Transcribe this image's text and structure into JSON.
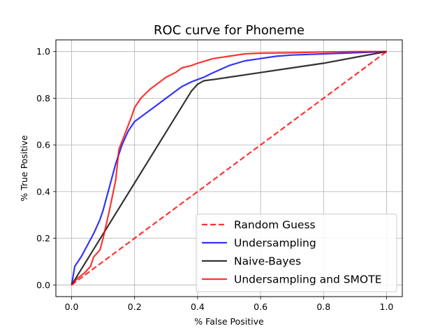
{
  "chart_data": {
    "type": "line",
    "title": "ROC curve for Phoneme",
    "xlabel": "% False Positive",
    "ylabel": "% True Positive",
    "xlim": [
      -0.05,
      1.05
    ],
    "ylim": [
      -0.05,
      1.05
    ],
    "xticks": [
      "0.0",
      "0.2",
      "0.4",
      "0.6",
      "0.8",
      "1.0"
    ],
    "yticks": [
      "0.0",
      "0.2",
      "0.4",
      "0.6",
      "0.8",
      "1.0"
    ],
    "grid": true,
    "legend_position": "lower-right",
    "series": [
      {
        "name": "Random Guess",
        "style": "dashed",
        "color": "#ff0000",
        "x": [
          0,
          1
        ],
        "y": [
          0,
          1
        ]
      },
      {
        "name": "Undersampling",
        "style": "solid",
        "color": "#0000ff",
        "x": [
          0,
          0.01,
          0.03,
          0.05,
          0.07,
          0.09,
          0.1,
          0.12,
          0.14,
          0.16,
          0.18,
          0.2,
          0.22,
          0.25,
          0.28,
          0.3,
          0.33,
          0.35,
          0.38,
          0.4,
          0.42,
          0.45,
          0.5,
          0.55,
          0.6,
          0.65,
          0.7,
          0.8,
          0.9,
          1.0
        ],
        "y": [
          0,
          0.08,
          0.12,
          0.17,
          0.22,
          0.28,
          0.32,
          0.42,
          0.52,
          0.6,
          0.66,
          0.7,
          0.72,
          0.75,
          0.78,
          0.8,
          0.83,
          0.85,
          0.87,
          0.88,
          0.89,
          0.91,
          0.94,
          0.96,
          0.97,
          0.98,
          0.985,
          0.99,
          0.995,
          1.0
        ]
      },
      {
        "name": "Naive-Bayes",
        "style": "solid",
        "color": "#000000",
        "x": [
          0,
          0.38,
          0.4,
          0.42,
          0.45,
          0.5,
          0.6,
          0.7,
          0.8,
          0.9,
          1.0
        ],
        "y": [
          0,
          0.83,
          0.86,
          0.875,
          0.88,
          0.89,
          0.91,
          0.93,
          0.95,
          0.975,
          1.0
        ]
      },
      {
        "name": "Undersampling and SMOTE",
        "style": "solid",
        "color": "#ff0000",
        "x": [
          0,
          0.02,
          0.04,
          0.06,
          0.07,
          0.09,
          0.1,
          0.12,
          0.14,
          0.15,
          0.17,
          0.19,
          0.2,
          0.22,
          0.25,
          0.28,
          0.3,
          0.33,
          0.35,
          0.38,
          0.4,
          0.45,
          0.5,
          0.55,
          0.6,
          0.7,
          0.8,
          0.9,
          1.0
        ],
        "y": [
          0,
          0.03,
          0.05,
          0.08,
          0.12,
          0.15,
          0.2,
          0.32,
          0.45,
          0.58,
          0.65,
          0.72,
          0.76,
          0.8,
          0.84,
          0.87,
          0.89,
          0.91,
          0.93,
          0.94,
          0.95,
          0.97,
          0.98,
          0.99,
          0.993,
          0.995,
          0.998,
          1.0,
          1.0
        ]
      }
    ]
  }
}
